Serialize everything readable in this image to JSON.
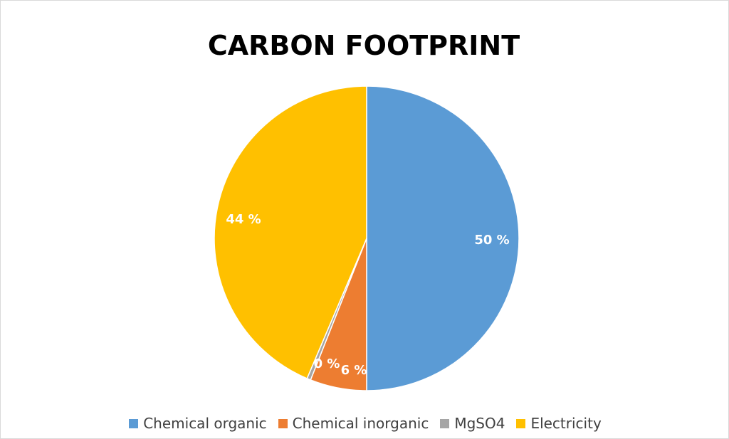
{
  "chart_data": {
    "type": "pie",
    "title": "CARBON FOOTPRINT",
    "categories": [
      "Chemical organic",
      "Chemical inorganic",
      "MgSO4",
      "Electricity"
    ],
    "values": [
      50,
      6,
      0.4,
      43.6
    ],
    "data_labels": [
      "50 %",
      "6 %",
      "0 %",
      "44 %"
    ],
    "colors": [
      "#5B9BD5",
      "#ED7D31",
      "#A5A5A5",
      "#FFC000"
    ],
    "legend_position": "bottom"
  }
}
